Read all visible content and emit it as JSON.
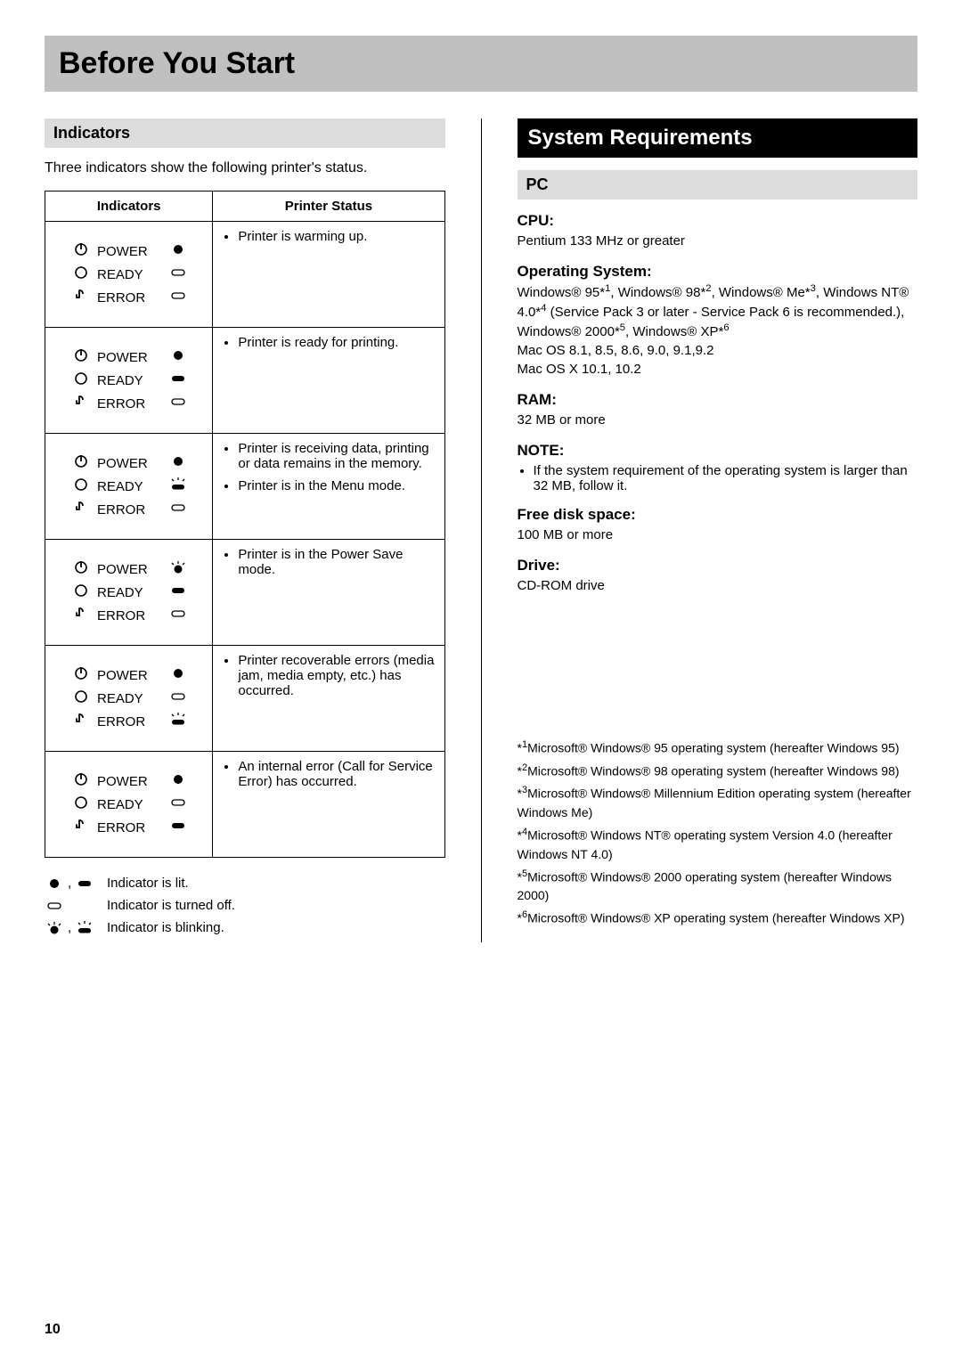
{
  "page_title": "Before You Start",
  "page_number": "10",
  "left": {
    "heading": "Indicators",
    "intro": "Three indicators show the following printer's status.",
    "table_headers": {
      "col1": "Indicators",
      "col2": "Printer Status"
    },
    "indicator_labels": {
      "power": "POWER",
      "ready": "READY",
      "error": "ERROR"
    },
    "rows": [
      {
        "states": {
          "power": "lit-circle",
          "ready": "off",
          "error": "off"
        },
        "status": [
          "Printer is warming up."
        ]
      },
      {
        "states": {
          "power": "lit-circle",
          "ready": "lit-pill",
          "error": "off"
        },
        "status": [
          "Printer is ready for printing."
        ]
      },
      {
        "states": {
          "power": "lit-circle",
          "ready": "blink-pill",
          "error": "off"
        },
        "status": [
          "Printer is receiving data, printing or data remains in the memory.",
          "Printer is in the Menu mode."
        ]
      },
      {
        "states": {
          "power": "blink-circle",
          "ready": "lit-pill",
          "error": "off"
        },
        "status": [
          "Printer is in the Power Save mode."
        ]
      },
      {
        "states": {
          "power": "lit-circle",
          "ready": "off",
          "error": "blink-pill"
        },
        "status": [
          "Printer recoverable errors (media jam, media empty, etc.) has occurred."
        ]
      },
      {
        "states": {
          "power": "lit-circle",
          "ready": "off",
          "error": "lit-pill"
        },
        "status": [
          "An internal error (Call for Service Error) has occurred."
        ]
      }
    ],
    "legend": {
      "lit": "Indicator is lit.",
      "off": "Indicator is turned off.",
      "blink": "Indicator is blinking."
    }
  },
  "right": {
    "heading": "System Requirements",
    "sub_heading": "PC",
    "specs": [
      {
        "label": "CPU:",
        "body_html": "Pentium 133 MHz or greater"
      },
      {
        "label": "Operating System:",
        "body_html": "Windows® 95*<sup>1</sup>, Windows® 98*<sup>2</sup>, Windows® Me*<sup>3</sup>, Windows NT® 4.0*<sup>4</sup> (Service Pack 3 or later - Service Pack 6 is recommended.), Windows® 2000*<sup>5</sup>, Windows® XP*<sup>6</sup><br>Mac OS 8.1, 8.5, 8.6, 9.0, 9.1,9.2<br>Mac OS X 10.1, 10.2"
      },
      {
        "label": "RAM:",
        "body_html": "32 MB or more"
      },
      {
        "label": "NOTE:",
        "body_list": [
          "If the system requirement of the operating system is larger than 32 MB, follow it."
        ]
      },
      {
        "label": "Free disk space:",
        "body_html": "100 MB or more"
      },
      {
        "label": "Drive:",
        "body_html": "CD-ROM drive"
      }
    ],
    "footnotes": [
      {
        "n": "1",
        "text": "Microsoft® Windows® 95 operating system (hereafter Windows 95)"
      },
      {
        "n": "2",
        "text": "Microsoft® Windows® 98 operating system (hereafter Windows 98)"
      },
      {
        "n": "3",
        "text": "Microsoft® Windows® Millennium Edition operating system (hereafter Windows Me)"
      },
      {
        "n": "4",
        "text": "Microsoft® Windows NT® operating system Version 4.0 (hereafter Windows NT 4.0)"
      },
      {
        "n": "5",
        "text": "Microsoft® Windows® 2000 operating system (hereafter Windows 2000)"
      },
      {
        "n": "6",
        "text": "Microsoft® Windows® XP operating system (hereafter Windows XP)"
      }
    ]
  },
  "colors": {
    "title_bg": "#c0c0c0",
    "sub_grey_bg": "#dcdcdc",
    "black_bg": "#000000",
    "text": "#000000",
    "page_bg": "#ffffff"
  }
}
